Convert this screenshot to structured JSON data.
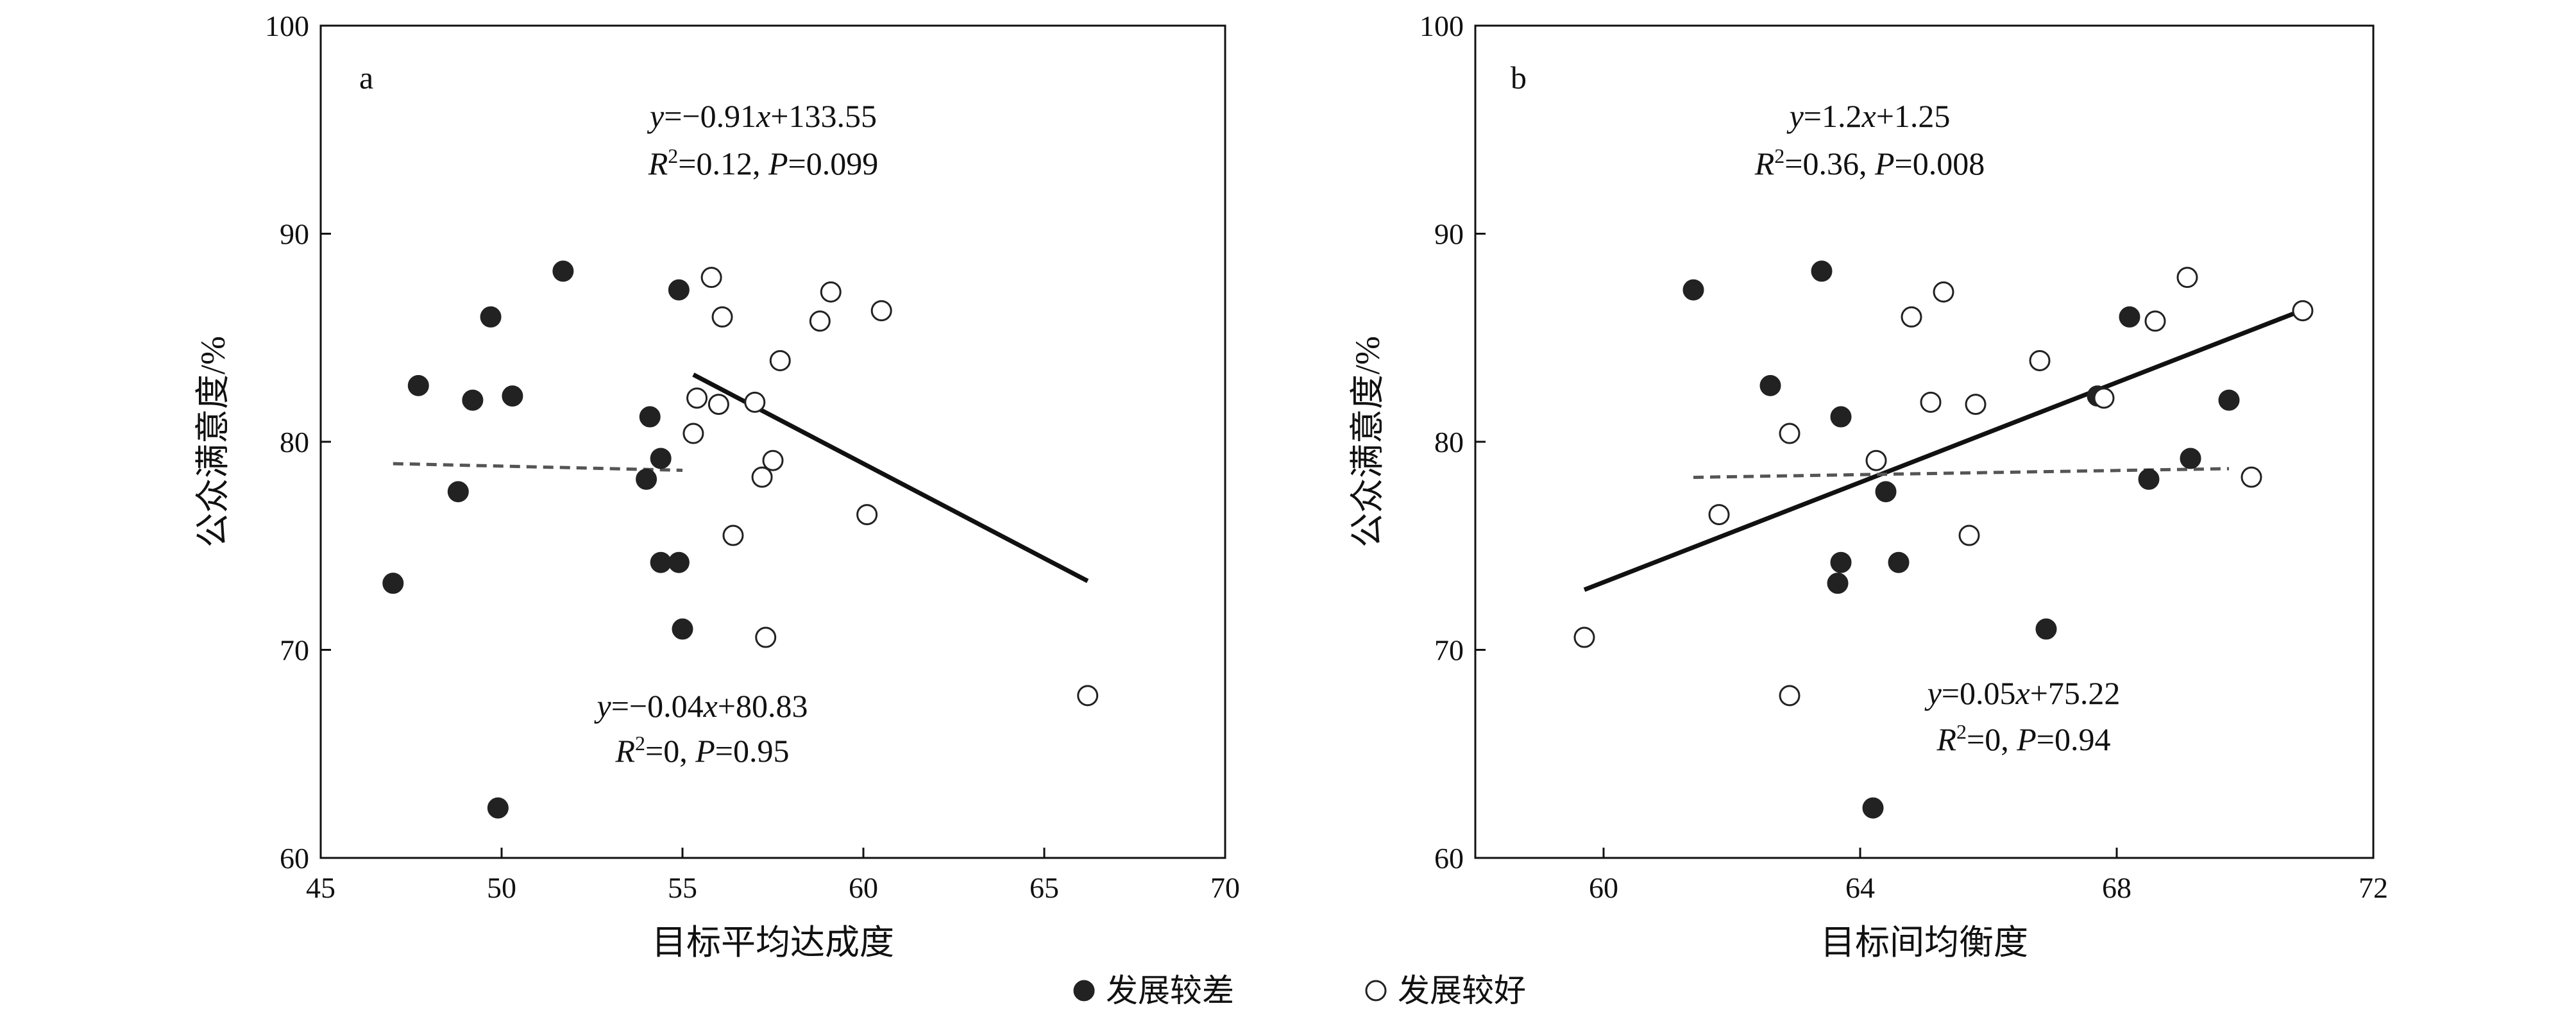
{
  "chart_data": [
    {
      "type": "scatter",
      "panel_label": "a",
      "xlabel": "目标平均达成度",
      "ylabel": "公众满意度/%",
      "xlim": [
        45,
        70
      ],
      "ylim": [
        60,
        100
      ],
      "xticks": [
        45,
        50,
        55,
        60,
        65,
        70
      ],
      "yticks": [
        60,
        70,
        80,
        90,
        100
      ],
      "series": [
        {
          "name": "发展较差",
          "marker": "filled-circle",
          "color": "#222222",
          "points": [
            [
              47.0,
              73.2
            ],
            [
              47.7,
              82.7
            ],
            [
              48.8,
              77.6
            ],
            [
              49.2,
              82.0
            ],
            [
              49.7,
              86.0
            ],
            [
              49.9,
              62.4
            ],
            [
              50.3,
              82.2
            ],
            [
              51.7,
              88.2
            ],
            [
              54.0,
              78.2
            ],
            [
              54.1,
              81.2
            ],
            [
              54.4,
              79.2
            ],
            [
              54.4,
              74.2
            ],
            [
              54.9,
              74.2
            ],
            [
              54.9,
              87.3
            ],
            [
              55.0,
              71.0
            ]
          ]
        },
        {
          "name": "发展较好",
          "marker": "open-circle",
          "color": "#222222",
          "points": [
            [
              55.4,
              82.1
            ],
            [
              55.8,
              87.9
            ],
            [
              56.0,
              81.8
            ],
            [
              56.1,
              86.0
            ],
            [
              56.4,
              75.5
            ],
            [
              55.3,
              80.4
            ],
            [
              57.0,
              81.9
            ],
            [
              57.2,
              78.3
            ],
            [
              57.3,
              70.6
            ],
            [
              57.5,
              79.1
            ],
            [
              57.7,
              83.9
            ],
            [
              58.8,
              85.8
            ],
            [
              59.1,
              87.2
            ],
            [
              60.1,
              76.5
            ],
            [
              60.5,
              86.3
            ],
            [
              66.2,
              67.8
            ]
          ]
        }
      ],
      "fits": [
        {
          "style": "solid",
          "x_range": [
            55.3,
            66.2
          ],
          "slope": -0.91,
          "intercept": 133.55,
          "equation_y": "y",
          "equation_rhs": "=−0.91",
          "equation_x": "x",
          "equation_tail": "+133.55",
          "stats_r": "R",
          "stats_sup": "2",
          "stats_mid": "=0.12, ",
          "stats_p": "P",
          "stats_tail": "=0.099"
        },
        {
          "style": "dashed",
          "x_range": [
            47.0,
            55.0
          ],
          "slope": -0.04,
          "intercept": 80.83,
          "equation_y": "y",
          "equation_rhs": "=−0.04",
          "equation_x": "x",
          "equation_tail": "+80.83",
          "stats_r": "R",
          "stats_sup": "2",
          "stats_mid": "=0, ",
          "stats_p": "P",
          "stats_tail": "=0.95"
        }
      ]
    },
    {
      "type": "scatter",
      "panel_label": "b",
      "xlabel": "目标间均衡度",
      "ylabel": "公众满意度/%",
      "xlim": [
        58,
        72
      ],
      "ylim": [
        60,
        100
      ],
      "xticks": [
        60,
        64,
        68,
        72
      ],
      "yticks": [
        60,
        70,
        80,
        90,
        100
      ],
      "series": [
        {
          "name": "发展较差",
          "marker": "filled-circle",
          "color": "#222222",
          "points": [
            [
              61.4,
              87.3
            ],
            [
              62.6,
              82.7
            ],
            [
              63.4,
              88.2
            ],
            [
              63.7,
              81.2
            ],
            [
              63.7,
              74.2
            ],
            [
              63.65,
              73.2
            ],
            [
              64.2,
              62.4
            ],
            [
              64.4,
              77.6
            ],
            [
              64.6,
              74.2
            ],
            [
              66.9,
              71.0
            ],
            [
              67.7,
              82.2
            ],
            [
              68.2,
              86.0
            ],
            [
              68.5,
              78.2
            ],
            [
              69.15,
              79.2
            ],
            [
              69.75,
              82.0
            ]
          ]
        },
        {
          "name": "发展较好",
          "marker": "open-circle",
          "color": "#222222",
          "points": [
            [
              59.7,
              70.6
            ],
            [
              61.8,
              76.5
            ],
            [
              62.9,
              80.4
            ],
            [
              62.9,
              67.8
            ],
            [
              64.25,
              79.1
            ],
            [
              64.8,
              86.0
            ],
            [
              65.1,
              81.9
            ],
            [
              65.3,
              87.2
            ],
            [
              65.7,
              75.5
            ],
            [
              65.8,
              81.8
            ],
            [
              66.8,
              83.9
            ],
            [
              67.8,
              82.1
            ],
            [
              68.6,
              85.8
            ],
            [
              69.1,
              87.9
            ],
            [
              70.1,
              78.3
            ],
            [
              70.9,
              86.3
            ]
          ]
        }
      ],
      "fits": [
        {
          "style": "solid",
          "x_range": [
            59.7,
            70.9
          ],
          "slope": 1.2,
          "intercept": 1.25,
          "equation_y": "y",
          "equation_rhs": "=1.2",
          "equation_x": "x",
          "equation_tail": "+1.25",
          "stats_r": "R",
          "stats_sup": "2",
          "stats_mid": "=0.36, ",
          "stats_p": "P",
          "stats_tail": "=0.008"
        },
        {
          "style": "dashed",
          "x_range": [
            61.4,
            69.75
          ],
          "slope": 0.05,
          "intercept": 75.22,
          "equation_y": "y",
          "equation_rhs": "=0.05",
          "equation_x": "x",
          "equation_tail": "+75.22",
          "stats_r": "R",
          "stats_sup": "2",
          "stats_mid": "=0, ",
          "stats_p": "P",
          "stats_tail": "=0.94"
        }
      ]
    }
  ],
  "legend": [
    {
      "label": "发展较差",
      "marker": "filled-circle"
    },
    {
      "label": "发展较好",
      "marker": "open-circle"
    }
  ]
}
